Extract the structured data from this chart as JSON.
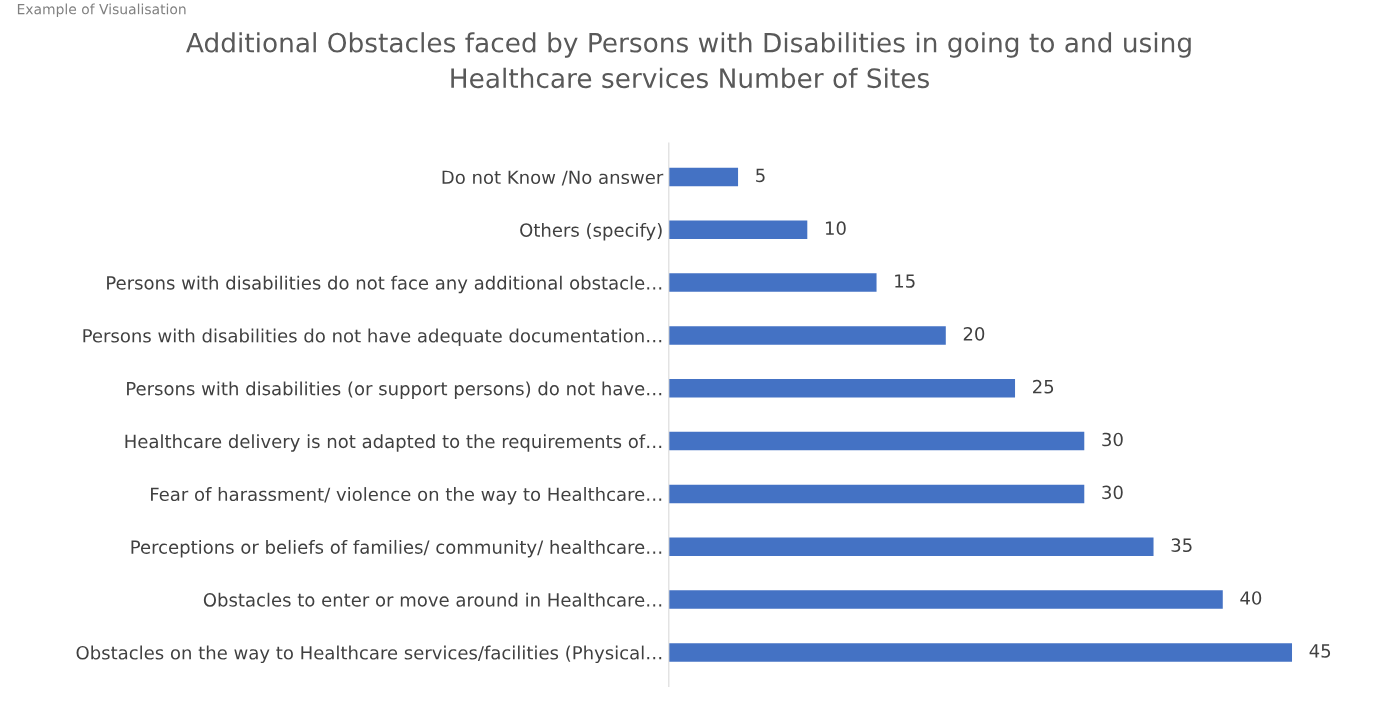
{
  "chart_data": {
    "type": "bar",
    "orientation": "horizontal",
    "title": "Additional Obstacles faced by Persons with Disabilities in going to and using\nHealthcare services Number of Sites",
    "annotations": [
      "Example of Visualisation"
    ],
    "categories": [
      "Do not Know /No answer",
      "Others (specify)",
      "Persons with disabilities do not face any additional obstacle…",
      "Persons with disabilities do not have adequate documentation…",
      "Persons with disabilities (or support persons) do not have…",
      "Healthcare delivery is not adapted to the requirements of…",
      "Fear of harassment/ violence on the way to Healthcare…",
      "Perceptions or beliefs of families/ community/ healthcare…",
      "Obstacles to enter or move around in Healthcare…",
      "Obstacles on the way to Healthcare services/facilities (Physical…"
    ],
    "values": [
      5,
      10,
      15,
      20,
      25,
      30,
      30,
      35,
      40,
      45
    ],
    "color": "#4472c4",
    "data_labels": true,
    "grid": false,
    "legend": false,
    "tick_labels": "y"
  }
}
